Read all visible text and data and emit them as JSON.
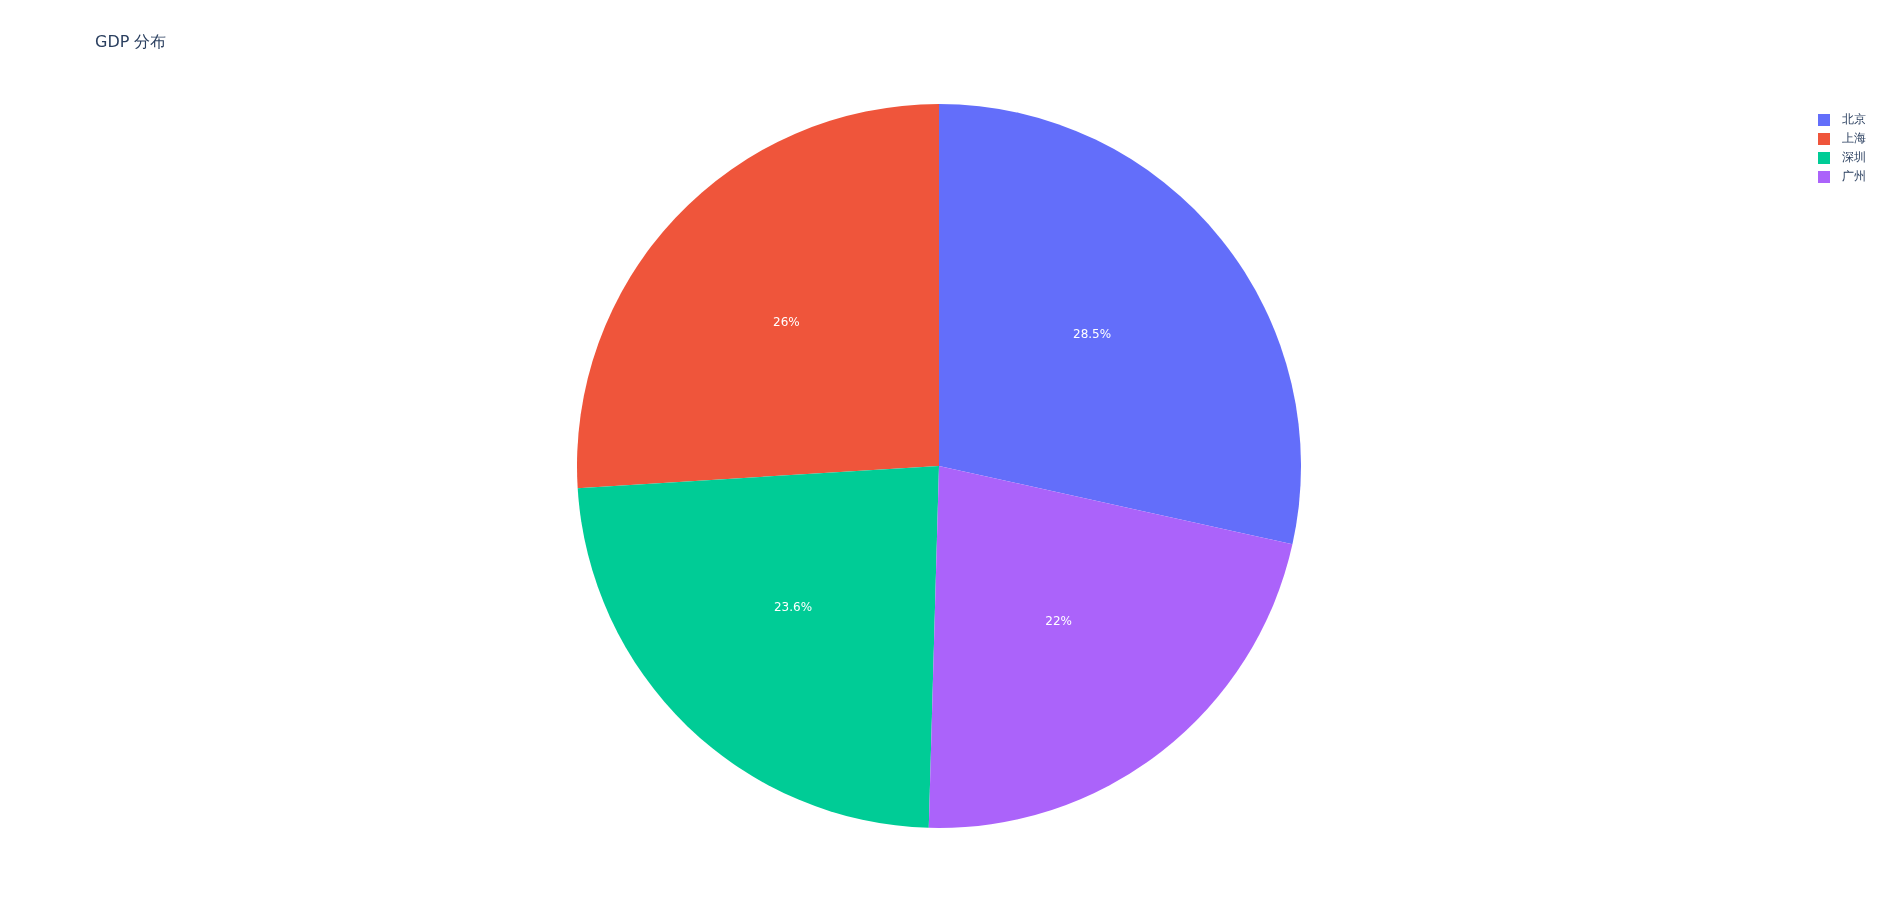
{
  "chart_data": {
    "type": "pie",
    "title": "GDP 分布",
    "categories": [
      "北京",
      "上海",
      "深圳",
      "广州"
    ],
    "values": [
      28.5,
      26,
      23.6,
      22
    ],
    "colors": [
      "#636efa",
      "#ef553b",
      "#00cc96",
      "#ab63fa"
    ],
    "value_labels": [
      "28.5%",
      "26%",
      "23.6%",
      "22%"
    ],
    "legend": "top right"
  }
}
